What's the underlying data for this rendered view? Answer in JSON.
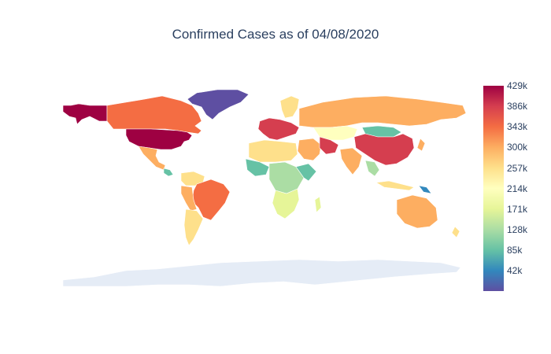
{
  "chart_data": {
    "type": "choropleth",
    "title": "Confirmed Cases as of 04/08/2020",
    "colorscale": "Spectral_r",
    "colorbar": {
      "min": 0,
      "max": 429000,
      "ticks": [
        {
          "value": 429000,
          "label": "429k"
        },
        {
          "value": 386000,
          "label": "386k"
        },
        {
          "value": 343000,
          "label": "343k"
        },
        {
          "value": 300000,
          "label": "300k"
        },
        {
          "value": 257000,
          "label": "257k"
        },
        {
          "value": 214000,
          "label": "214k"
        },
        {
          "value": 171000,
          "label": "171k"
        },
        {
          "value": 128000,
          "label": "128k"
        },
        {
          "value": 85000,
          "label": "85k"
        },
        {
          "value": 42000,
          "label": "42k"
        }
      ]
    },
    "colors": {
      "dark_red": "#9e0142",
      "red": "#d53e4f",
      "orange_red": "#f46d43",
      "orange": "#fdae61",
      "light_orange": "#fee08b",
      "pale_yellow": "#ffffbf",
      "light_green": "#e6f598",
      "green": "#abdda4",
      "teal": "#66c2a5",
      "blue": "#3288bd",
      "purple": "#5e4fa2",
      "antarctica": "#e5ecf6"
    },
    "regions": [
      {
        "name": "Greenland",
        "value": 10
      },
      {
        "name": "Alaska/USA",
        "value": 429000
      },
      {
        "name": "Canada",
        "value": 320000
      },
      {
        "name": "USA",
        "value": 429000
      },
      {
        "name": "Mexico",
        "value": 260000
      },
      {
        "name": "Brazil",
        "value": 320000
      },
      {
        "name": "Russia",
        "value": 310000
      },
      {
        "name": "China",
        "value": 360000
      },
      {
        "name": "Kazakhstan",
        "value": 230000
      },
      {
        "name": "Mongolia",
        "value": 100000
      },
      {
        "name": "India",
        "value": 300000
      },
      {
        "name": "Iran",
        "value": 370000
      },
      {
        "name": "Australia",
        "value": 270000
      },
      {
        "name": "Europe",
        "value": 400000
      },
      {
        "name": "Antarctica",
        "value": null
      }
    ]
  }
}
